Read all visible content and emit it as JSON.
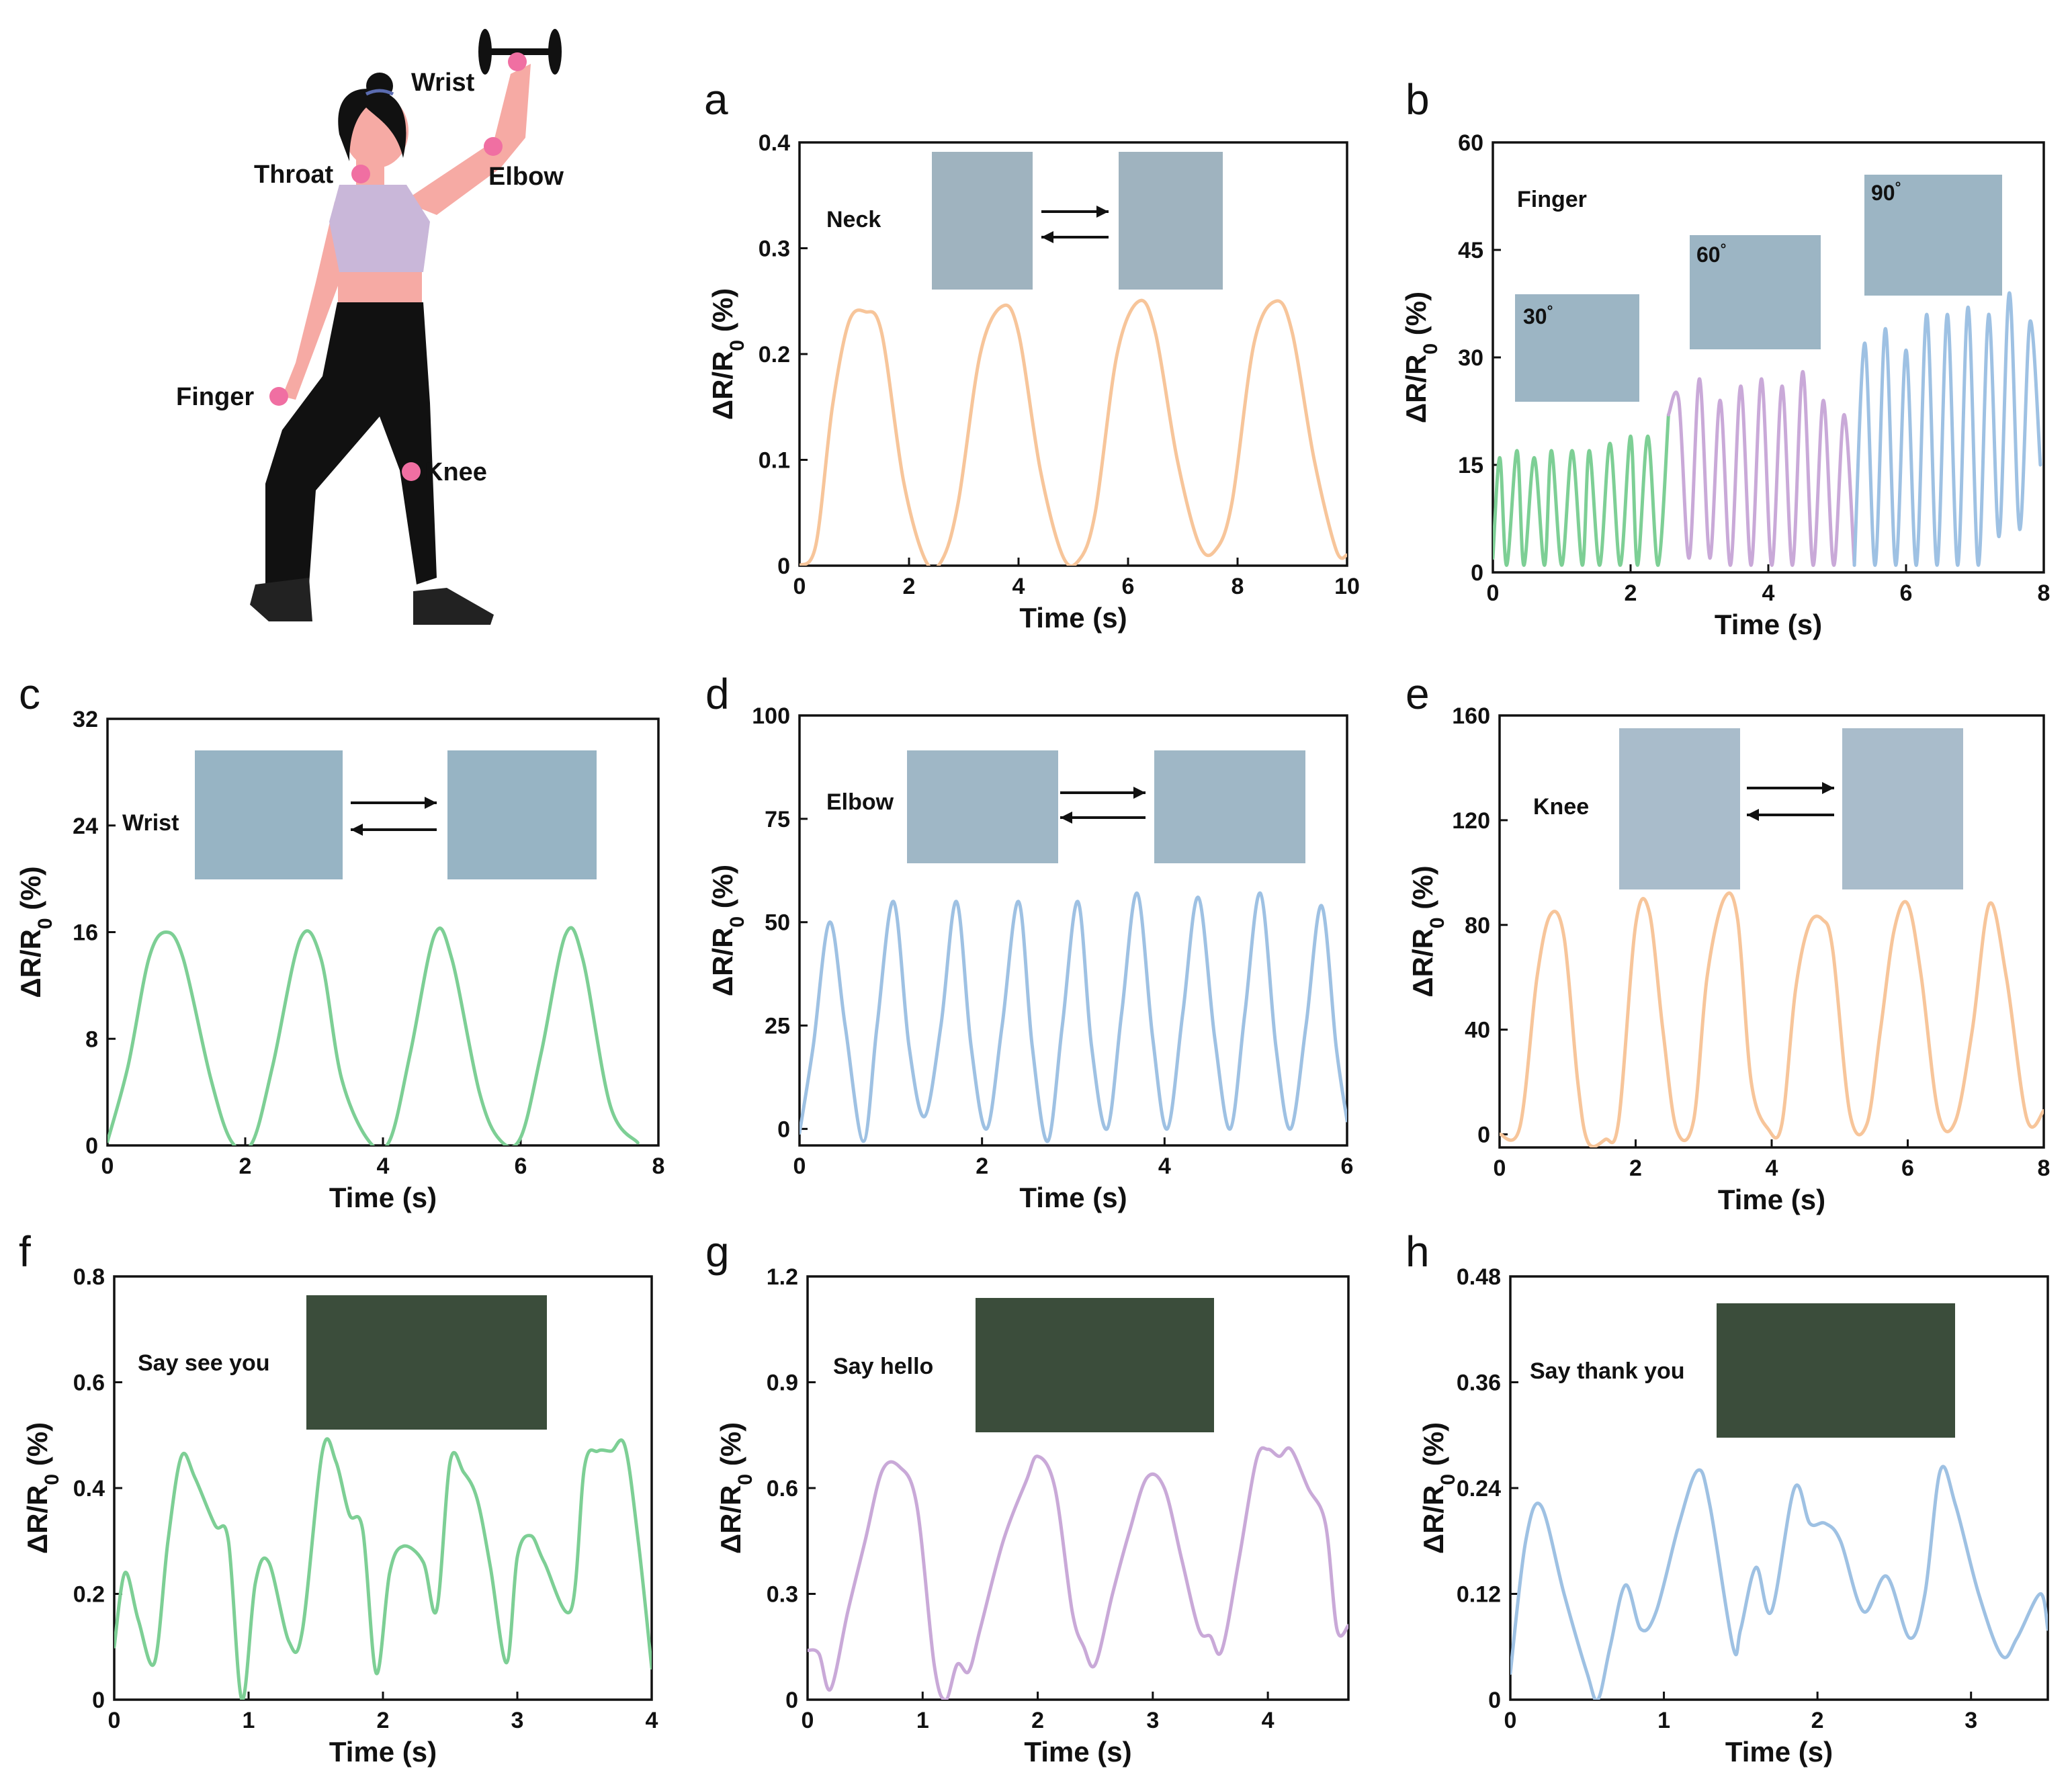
{
  "figure": {
    "body_labels": [
      "Wrist",
      "Throat",
      "Elbow",
      "Finger",
      "Knee"
    ]
  },
  "chart_data": [
    {
      "panel": "a",
      "type": "line",
      "annotation": "Neck",
      "xlabel": "Time (s)",
      "ylabel": "ΔR/R0 (%)",
      "xlim": [
        0,
        10
      ],
      "ylim": [
        0,
        0.4
      ],
      "xticks": [
        0,
        2,
        4,
        6,
        8,
        10
      ],
      "yticks": [
        0,
        0.1,
        0.2,
        0.3,
        0.4
      ],
      "ytick_labels": [
        "0",
        "0.1",
        "0.2",
        "0.3",
        "0.4"
      ],
      "series": [
        {
          "name": "Neck",
          "color": "#f7c59a",
          "x": [
            0,
            0.3,
            0.6,
            0.9,
            1.2,
            1.5,
            1.9,
            2.3,
            2.6,
            2.9,
            3.3,
            3.7,
            4.0,
            4.4,
            4.8,
            5.1,
            5.4,
            5.8,
            6.2,
            6.5,
            6.9,
            7.3,
            7.6,
            7.9,
            8.3,
            8.7,
            9.0,
            9.4,
            9.8,
            10.0
          ],
          "y": [
            0.0,
            0.02,
            0.15,
            0.23,
            0.24,
            0.22,
            0.08,
            0.005,
            0.005,
            0.06,
            0.2,
            0.245,
            0.22,
            0.09,
            0.01,
            0.005,
            0.05,
            0.2,
            0.25,
            0.22,
            0.1,
            0.02,
            0.015,
            0.06,
            0.21,
            0.25,
            0.22,
            0.1,
            0.015,
            0.01
          ]
        }
      ]
    },
    {
      "panel": "b",
      "type": "line",
      "annotation": "Finger",
      "angle_labels": [
        "30",
        "60",
        "90"
      ],
      "degree_symbol": "°",
      "xlabel": "Time (s)",
      "ylabel": "ΔR/R0 (%)",
      "xlim": [
        0,
        8
      ],
      "ylim": [
        0,
        60
      ],
      "xticks": [
        0,
        2,
        4,
        6,
        8
      ],
      "yticks": [
        0,
        15,
        30,
        45,
        60
      ],
      "ytick_labels": [
        "0",
        "15",
        "30",
        "45",
        "60"
      ],
      "series": [
        {
          "name": "30°",
          "color": "#7dcf95",
          "x": [
            0,
            0.1,
            0.2,
            0.35,
            0.45,
            0.6,
            0.75,
            0.85,
            1.0,
            1.15,
            1.3,
            1.4,
            1.55,
            1.7,
            1.85,
            2.0,
            2.1,
            2.25,
            2.4,
            2.55
          ],
          "y": [
            2,
            16,
            1,
            17,
            1,
            16,
            1,
            17,
            1,
            17,
            1,
            17,
            1,
            18,
            1,
            19,
            1,
            19,
            1,
            22
          ]
        },
        {
          "name": "60°",
          "color": "#c9a9d8",
          "x": [
            2.55,
            2.7,
            2.85,
            3.0,
            3.15,
            3.3,
            3.45,
            3.6,
            3.75,
            3.9,
            4.05,
            4.2,
            4.35,
            4.5,
            4.65,
            4.8,
            4.95,
            5.1,
            5.25
          ],
          "y": [
            22,
            24,
            2,
            27,
            2,
            24,
            1,
            26,
            1,
            27,
            1,
            26,
            1,
            28,
            1,
            24,
            1,
            22,
            1
          ]
        },
        {
          "name": "90°",
          "color": "#9ec1e3",
          "x": [
            5.25,
            5.4,
            5.55,
            5.7,
            5.85,
            6.0,
            6.15,
            6.3,
            6.45,
            6.6,
            6.75,
            6.9,
            7.05,
            7.2,
            7.35,
            7.5,
            7.65,
            7.8,
            7.95
          ],
          "y": [
            1,
            32,
            1,
            34,
            1,
            31,
            1,
            36,
            1,
            36,
            1,
            37,
            1,
            36,
            5,
            39,
            6,
            35,
            15
          ]
        }
      ]
    },
    {
      "panel": "c",
      "type": "line",
      "annotation": "Wrist",
      "xlabel": "Time (s)",
      "ylabel": "ΔR/R0 (%)",
      "xlim": [
        0,
        8
      ],
      "ylim": [
        0,
        32
      ],
      "xticks": [
        0,
        2,
        4,
        6,
        8
      ],
      "yticks": [
        0,
        8,
        16,
        24,
        32
      ],
      "ytick_labels": [
        "0",
        "8",
        "16",
        "24",
        "32"
      ],
      "series": [
        {
          "name": "Wrist",
          "color": "#7dcf95",
          "x": [
            0,
            0.3,
            0.6,
            0.85,
            1.1,
            1.5,
            1.8,
            2.1,
            2.4,
            2.8,
            3.1,
            3.4,
            3.8,
            4.1,
            4.4,
            4.75,
            5.0,
            5.4,
            5.7,
            6.0,
            6.3,
            6.65,
            6.9,
            7.3,
            7.7
          ],
          "y": [
            0.3,
            6,
            14,
            16,
            14,
            5,
            0.3,
            0.2,
            6,
            15.5,
            14,
            5,
            0.3,
            0.4,
            7,
            15.8,
            14,
            4,
            0.4,
            0.6,
            7,
            15.8,
            14,
            3,
            0.2
          ]
        }
      ]
    },
    {
      "panel": "d",
      "type": "line",
      "annotation": "Elbow",
      "xlabel": "Time (s)",
      "ylabel": "ΔR/R0 (%)",
      "xlim": [
        0,
        6
      ],
      "ylim": [
        -4,
        100
      ],
      "xticks": [
        0,
        2,
        4,
        6
      ],
      "yticks": [
        0,
        25,
        50,
        75,
        100
      ],
      "ytick_labels": [
        "0",
        "25",
        "50",
        "75",
        "100"
      ],
      "series": [
        {
          "name": "Elbow",
          "color": "#9ec1e3",
          "x": [
            0,
            0.15,
            0.33,
            0.5,
            0.7,
            0.85,
            1.03,
            1.2,
            1.37,
            1.55,
            1.72,
            1.88,
            2.05,
            2.22,
            2.4,
            2.55,
            2.72,
            2.88,
            3.05,
            3.2,
            3.37,
            3.53,
            3.7,
            3.87,
            4.03,
            4.2,
            4.37,
            4.55,
            4.72,
            4.88,
            5.05,
            5.22,
            5.38,
            5.55,
            5.72,
            5.88,
            6.0
          ],
          "y": [
            -1,
            20,
            50,
            25,
            -3,
            25,
            55,
            20,
            3,
            25,
            55,
            20,
            0,
            25,
            55,
            20,
            -3,
            25,
            55,
            20,
            0,
            28,
            57,
            22,
            0,
            28,
            56,
            22,
            0,
            28,
            57,
            20,
            0,
            25,
            54,
            20,
            2
          ]
        }
      ]
    },
    {
      "panel": "e",
      "type": "line",
      "annotation": "Knee",
      "xlabel": "Time (s)",
      "ylabel": "ΔR/R0 (%)",
      "xlim": [
        0,
        8
      ],
      "ylim": [
        -5,
        160
      ],
      "xticks": [
        0,
        2,
        4,
        6,
        8
      ],
      "yticks": [
        0,
        40,
        80,
        120,
        160
      ],
      "ytick_labels": [
        "0",
        "40",
        "80",
        "120",
        "160"
      ],
      "series": [
        {
          "name": "Knee",
          "color": "#f7c59a",
          "x": [
            0,
            0.3,
            0.55,
            0.75,
            0.95,
            1.15,
            1.3,
            1.55,
            1.75,
            2.0,
            2.2,
            2.4,
            2.6,
            2.85,
            3.05,
            3.3,
            3.5,
            3.7,
            3.95,
            4.15,
            4.35,
            4.55,
            4.75,
            4.9,
            5.15,
            5.4,
            5.6,
            5.8,
            6.0,
            6.2,
            6.45,
            6.7,
            6.95,
            7.2,
            7.45,
            7.75,
            8.0
          ],
          "y": [
            0,
            3,
            60,
            84,
            75,
            20,
            -3,
            -2,
            5,
            80,
            85,
            40,
            2,
            5,
            60,
            90,
            82,
            20,
            2,
            4,
            55,
            80,
            82,
            70,
            8,
            4,
            40,
            78,
            88,
            60,
            8,
            5,
            40,
            88,
            60,
            6,
            9
          ]
        }
      ]
    },
    {
      "panel": "f",
      "type": "line",
      "annotation": "Say see you",
      "xlabel": "Time (s)",
      "ylabel": "ΔR/R0 (%)",
      "xlim": [
        0,
        4
      ],
      "ylim": [
        0,
        0.8
      ],
      "xticks": [
        0,
        1,
        2,
        3,
        4
      ],
      "yticks": [
        0,
        0.2,
        0.4,
        0.6,
        0.8
      ],
      "ytick_labels": [
        "0",
        "0.2",
        "0.4",
        "0.6",
        "0.8"
      ],
      "series": [
        {
          "name": "Say see you",
          "color": "#7dcf95",
          "x": [
            0,
            0.08,
            0.18,
            0.3,
            0.4,
            0.5,
            0.6,
            0.75,
            0.85,
            0.95,
            1.05,
            1.15,
            1.3,
            1.4,
            1.55,
            1.65,
            1.75,
            1.85,
            1.95,
            2.05,
            2.15,
            2.3,
            2.4,
            2.5,
            2.6,
            2.7,
            2.8,
            2.92,
            3.0,
            3.1,
            3.2,
            3.4,
            3.5,
            3.6,
            3.7,
            3.8,
            3.9,
            4.0
          ],
          "y": [
            0.1,
            0.24,
            0.15,
            0.07,
            0.3,
            0.46,
            0.42,
            0.33,
            0.3,
            0.0,
            0.22,
            0.26,
            0.11,
            0.13,
            0.47,
            0.45,
            0.35,
            0.32,
            0.05,
            0.24,
            0.29,
            0.26,
            0.17,
            0.45,
            0.43,
            0.38,
            0.25,
            0.07,
            0.27,
            0.31,
            0.26,
            0.17,
            0.44,
            0.47,
            0.47,
            0.48,
            0.3,
            0.06
          ]
        }
      ]
    },
    {
      "panel": "g",
      "type": "line",
      "annotation": "Say hello",
      "xlabel": "Time (s)",
      "ylabel": "ΔR/R0 (%)",
      "xlim": [
        0,
        4.7
      ],
      "ylim": [
        0,
        1.2
      ],
      "xticks": [
        0,
        1,
        2,
        3,
        4
      ],
      "yticks": [
        0,
        0.3,
        0.6,
        0.9,
        1.2
      ],
      "ytick_labels": [
        "0",
        "0.3",
        "0.6",
        "0.9",
        "1.2"
      ],
      "series": [
        {
          "name": "Say hello",
          "color": "#c9a9d8",
          "x": [
            0,
            0.1,
            0.2,
            0.35,
            0.5,
            0.65,
            0.8,
            0.95,
            1.1,
            1.2,
            1.3,
            1.4,
            1.5,
            1.7,
            1.9,
            2.0,
            2.15,
            2.3,
            2.4,
            2.5,
            2.65,
            2.8,
            2.95,
            3.1,
            3.25,
            3.4,
            3.5,
            3.6,
            3.75,
            3.9,
            4.0,
            4.1,
            4.2,
            4.35,
            4.5,
            4.6,
            4.7
          ],
          "y": [
            0.14,
            0.13,
            0.03,
            0.25,
            0.45,
            0.65,
            0.66,
            0.55,
            0.1,
            0.0,
            0.1,
            0.08,
            0.2,
            0.45,
            0.62,
            0.69,
            0.6,
            0.25,
            0.15,
            0.1,
            0.3,
            0.48,
            0.63,
            0.6,
            0.4,
            0.2,
            0.18,
            0.14,
            0.4,
            0.68,
            0.71,
            0.69,
            0.71,
            0.6,
            0.5,
            0.2,
            0.21
          ]
        }
      ]
    },
    {
      "panel": "h",
      "type": "line",
      "annotation": "Say thank you",
      "xlabel": "Time (s)",
      "ylabel": "ΔR/R0 (%)",
      "xlim": [
        0,
        3.5
      ],
      "ylim": [
        0,
        0.48
      ],
      "xticks": [
        0,
        1,
        2,
        3
      ],
      "yticks": [
        0,
        0.12,
        0.24,
        0.36,
        0.48
      ],
      "ytick_labels": [
        "0",
        "0.12",
        "0.24",
        "0.36",
        "0.48"
      ],
      "series": [
        {
          "name": "Say thank you",
          "color": "#9ec1e3",
          "x": [
            0,
            0.1,
            0.2,
            0.35,
            0.5,
            0.57,
            0.65,
            0.75,
            0.85,
            0.95,
            1.1,
            1.22,
            1.3,
            1.45,
            1.5,
            1.6,
            1.7,
            1.85,
            1.95,
            2.05,
            2.15,
            2.3,
            2.45,
            2.6,
            2.7,
            2.8,
            2.9,
            3.05,
            3.2,
            3.3,
            3.45,
            3.5
          ],
          "y": [
            0.03,
            0.18,
            0.22,
            0.12,
            0.03,
            0.0,
            0.06,
            0.13,
            0.08,
            0.1,
            0.2,
            0.26,
            0.22,
            0.06,
            0.08,
            0.15,
            0.1,
            0.24,
            0.2,
            0.2,
            0.18,
            0.1,
            0.14,
            0.07,
            0.12,
            0.26,
            0.22,
            0.12,
            0.05,
            0.07,
            0.12,
            0.08
          ]
        }
      ]
    }
  ]
}
